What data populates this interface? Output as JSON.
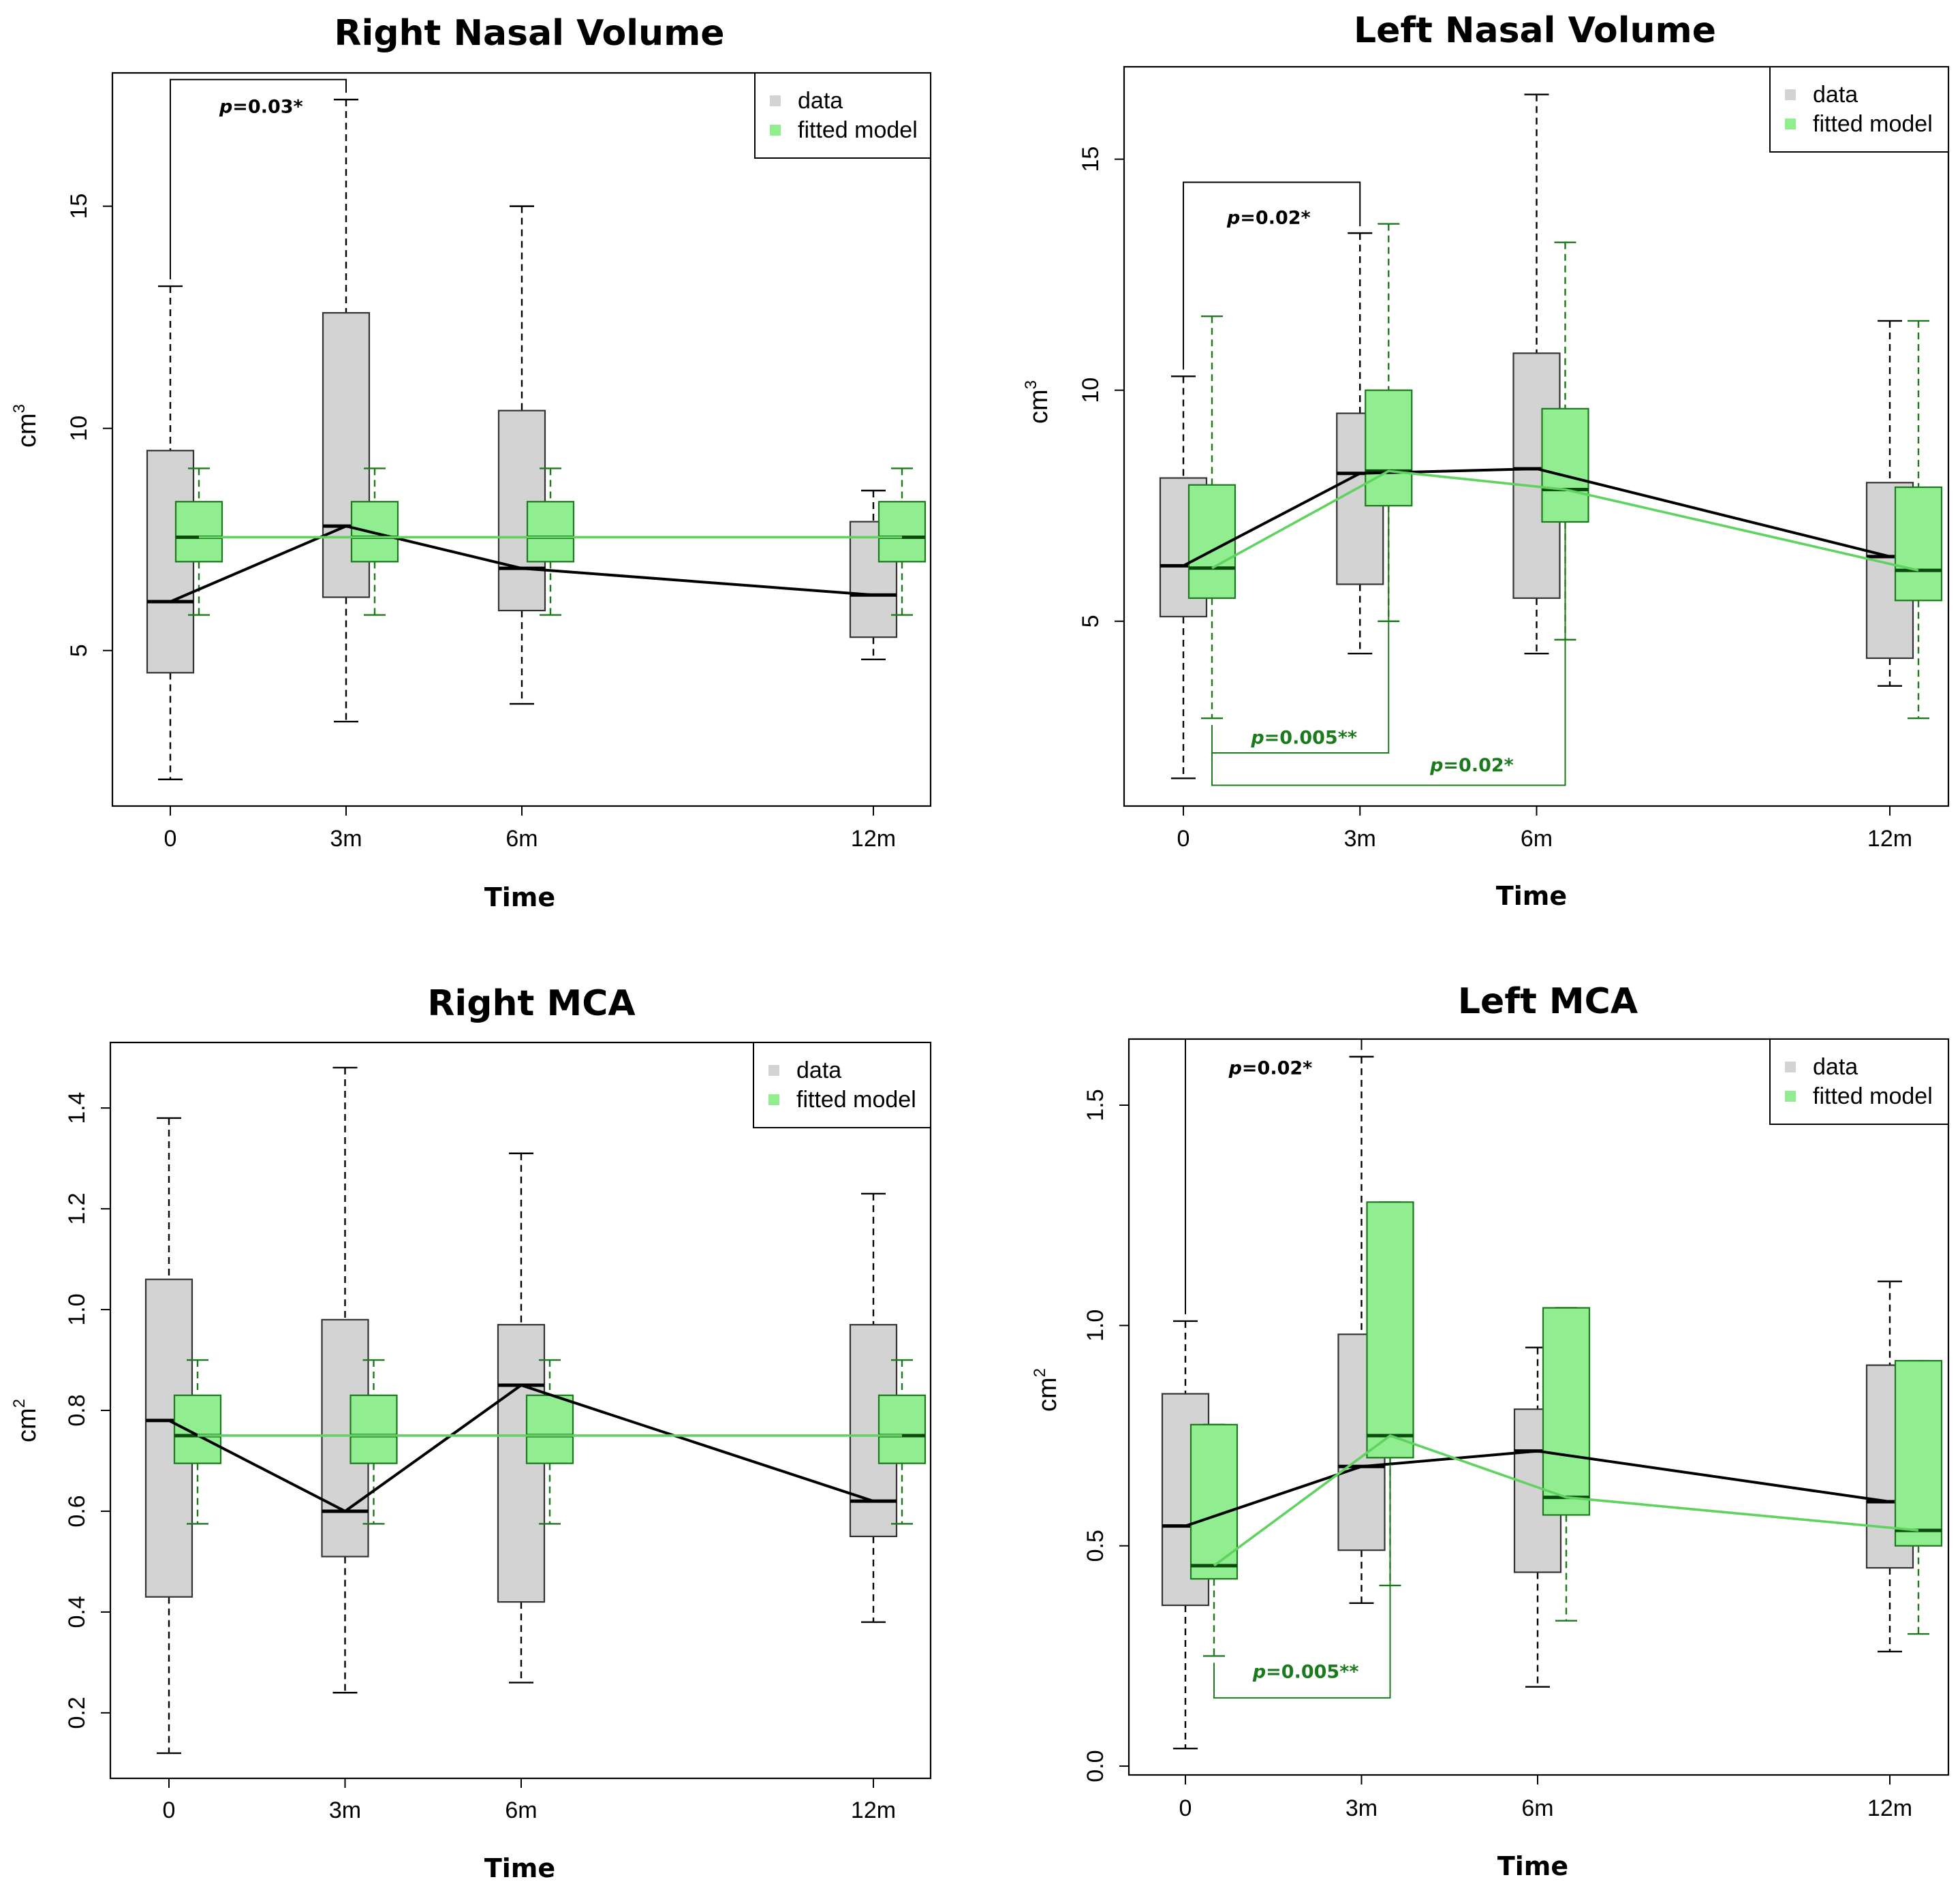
{
  "colors": {
    "data_box": "#d3d3d3",
    "model_box": "#90ee90",
    "model_line": "#5fd35f",
    "model_dark": "#1b7a1b",
    "ink": "#000000"
  },
  "chart_data": [
    {
      "type": "box",
      "title": "Right Nasal Volume",
      "xlabel": "Time",
      "ylabel": "cm",
      "ylabel_sup": "3",
      "ylim": [
        1.5,
        18
      ],
      "yticks": [
        5,
        10,
        15
      ],
      "ytick_labels": [
        "5",
        "10",
        "15"
      ],
      "categories": [
        "0",
        "3m",
        "6m",
        "12m"
      ],
      "x_positions": [
        0,
        3,
        6,
        12
      ],
      "legend": [
        "data",
        "fitted model"
      ],
      "series": [
        {
          "name": "data",
          "boxes": [
            {
              "min": 2.1,
              "q1": 4.5,
              "median": 6.1,
              "q3": 9.5,
              "max": 13.2
            },
            {
              "min": 3.4,
              "q1": 6.2,
              "median": 7.8,
              "q3": 12.6,
              "max": 17.4
            },
            {
              "min": 3.8,
              "q1": 5.9,
              "median": 6.85,
              "q3": 10.4,
              "max": 15.0
            },
            {
              "min": 4.8,
              "q1": 5.3,
              "median": 6.25,
              "q3": 7.9,
              "max": 8.6
            }
          ],
          "line": [
            6.1,
            7.8,
            6.85,
            6.25
          ]
        },
        {
          "name": "fitted model",
          "boxes": [
            {
              "min": 5.8,
              "q1": 7.0,
              "median": 7.55,
              "q3": 8.35,
              "max": 9.1
            },
            {
              "min": 5.8,
              "q1": 7.0,
              "median": 7.55,
              "q3": 8.35,
              "max": 9.1
            },
            {
              "min": 5.8,
              "q1": 7.0,
              "median": 7.55,
              "q3": 8.35,
              "max": 9.1
            },
            {
              "min": 5.8,
              "q1": 7.0,
              "median": 7.55,
              "q3": 8.35,
              "max": 9.1
            }
          ],
          "line": [
            7.55,
            7.55,
            7.55,
            7.55
          ]
        }
      ],
      "annotations": [
        {
          "text": "p=0.03*",
          "p": "p",
          "rest": "=0.03*",
          "color": "black",
          "from": 0,
          "to": 3,
          "side": "top",
          "level": 17.85,
          "text_y": 17.1,
          "text_x": 1.55
        }
      ]
    },
    {
      "type": "box",
      "title": "Left Nasal Volume",
      "xlabel": "Time",
      "ylabel": "cm",
      "ylabel_sup": "3",
      "ylim": [
        1.0,
        17.0
      ],
      "yticks": [
        5,
        10,
        15
      ],
      "ytick_labels": [
        "5",
        "10",
        "15"
      ],
      "categories": [
        "0",
        "3m",
        "6m",
        "12m"
      ],
      "x_positions": [
        0,
        3,
        6,
        12
      ],
      "legend": [
        "data",
        "fitted model"
      ],
      "series": [
        {
          "name": "data",
          "boxes": [
            {
              "min": 1.6,
              "q1": 5.1,
              "median": 6.2,
              "q3": 8.1,
              "max": 10.3
            },
            {
              "min": 4.3,
              "q1": 5.8,
              "median": 8.2,
              "q3": 9.5,
              "max": 13.4
            },
            {
              "min": 4.3,
              "q1": 5.5,
              "median": 8.3,
              "q3": 10.8,
              "max": 16.4
            },
            {
              "min": 3.6,
              "q1": 4.2,
              "median": 6.4,
              "q3": 8.0,
              "max": 11.5
            }
          ],
          "line": [
            6.2,
            8.2,
            8.3,
            6.4
          ]
        },
        {
          "name": "fitted model",
          "boxes": [
            {
              "min": 2.9,
              "q1": 5.5,
              "median": 6.15,
              "q3": 7.95,
              "max": 11.6
            },
            {
              "min": 5.0,
              "q1": 7.5,
              "median": 8.25,
              "q3": 10.0,
              "max": 13.6
            },
            {
              "min": 4.6,
              "q1": 7.15,
              "median": 7.85,
              "q3": 9.6,
              "max": 13.2
            },
            {
              "min": 2.9,
              "q1": 5.45,
              "median": 6.1,
              "q3": 7.9,
              "max": 11.5
            }
          ],
          "line": [
            6.15,
            8.25,
            7.85,
            6.1
          ]
        }
      ],
      "annotations": [
        {
          "text": "p=0.02*",
          "p": "p",
          "rest": "=0.02*",
          "color": "black",
          "from": 0,
          "to": 3,
          "side": "top",
          "level": 14.5,
          "text_y": 13.6,
          "text_x": 1.45
        },
        {
          "text": "p=0.005**",
          "p": "p",
          "rest": "=0.005**",
          "color": "green",
          "from": 0,
          "to": 3,
          "side": "bottom",
          "level": 2.15,
          "text_y": 2.35,
          "text_x": 2.05
        },
        {
          "text": "p=0.02*",
          "p": "p",
          "rest": "=0.02*",
          "color": "green",
          "from": 0,
          "to": 6,
          "side": "bottom",
          "level": 1.45,
          "text_y": 1.75,
          "text_x": 4.9
        }
      ]
    },
    {
      "type": "box",
      "title": "Right MCA",
      "xlabel": "Time",
      "ylabel": "cm",
      "ylabel_sup": "2",
      "ylim": [
        0.07,
        1.53
      ],
      "yticks": [
        0.2,
        0.4,
        0.6,
        0.8,
        1.0,
        1.2,
        1.4
      ],
      "ytick_labels": [
        "0.2",
        "0.4",
        "0.6",
        "0.8",
        "1.0",
        "1.2",
        "1.4"
      ],
      "categories": [
        "0",
        "3m",
        "6m",
        "12m"
      ],
      "x_positions": [
        0,
        3,
        6,
        12
      ],
      "legend": [
        "data",
        "fitted model"
      ],
      "series": [
        {
          "name": "data",
          "boxes": [
            {
              "min": 0.12,
              "q1": 0.43,
              "median": 0.78,
              "q3": 1.06,
              "max": 1.38
            },
            {
              "min": 0.24,
              "q1": 0.51,
              "median": 0.6,
              "q3": 0.98,
              "max": 1.48
            },
            {
              "min": 0.26,
              "q1": 0.42,
              "median": 0.85,
              "q3": 0.97,
              "max": 1.31
            },
            {
              "min": 0.38,
              "q1": 0.55,
              "median": 0.62,
              "q3": 0.97,
              "max": 1.23
            }
          ],
          "line": [
            0.78,
            0.6,
            0.85,
            0.62
          ]
        },
        {
          "name": "fitted model",
          "boxes": [
            {
              "min": 0.575,
              "q1": 0.695,
              "median": 0.75,
              "q3": 0.83,
              "max": 0.9
            },
            {
              "min": 0.575,
              "q1": 0.695,
              "median": 0.75,
              "q3": 0.83,
              "max": 0.9
            },
            {
              "min": 0.575,
              "q1": 0.695,
              "median": 0.75,
              "q3": 0.83,
              "max": 0.9
            },
            {
              "min": 0.575,
              "q1": 0.695,
              "median": 0.75,
              "q3": 0.83,
              "max": 0.9
            }
          ],
          "line": [
            0.75,
            0.75,
            0.75,
            0.75
          ]
        }
      ],
      "annotations": []
    },
    {
      "type": "box",
      "title": "Left MCA",
      "xlabel": "Time",
      "ylabel": "cm",
      "ylabel_sup": "2",
      "ylim": [
        -0.02,
        1.65
      ],
      "yticks": [
        0.0,
        0.5,
        1.0,
        1.5
      ],
      "ytick_labels": [
        "0.0",
        "0.5",
        "1.0",
        "1.5"
      ],
      "categories": [
        "0",
        "3m",
        "6m",
        "12m"
      ],
      "x_positions": [
        0,
        3,
        6,
        12
      ],
      "legend": [
        "data",
        "fitted model"
      ],
      "series": [
        {
          "name": "data",
          "boxes": [
            {
              "min": 0.04,
              "q1": 0.365,
              "median": 0.545,
              "q3": 0.845,
              "max": 1.01
            },
            {
              "min": 0.37,
              "q1": 0.49,
              "median": 0.68,
              "q3": 0.98,
              "max": 1.61
            },
            {
              "min": 0.18,
              "q1": 0.44,
              "median": 0.715,
              "q3": 0.81,
              "max": 0.95
            },
            {
              "min": 0.26,
              "q1": 0.45,
              "median": 0.6,
              "q3": 0.91,
              "max": 1.1
            }
          ],
          "line": [
            0.545,
            0.68,
            0.715,
            0.6
          ]
        },
        {
          "name": "fitted model",
          "boxes": [
            {
              "min": 0.25,
              "q1": 0.425,
              "median": 0.455,
              "q3": 0.775,
              "max": 0.775
            },
            {
              "min": 0.41,
              "q1": 0.7,
              "median": 0.75,
              "q3": 1.28,
              "max": 1.28
            },
            {
              "min": 0.33,
              "q1": 0.57,
              "median": 0.61,
              "q3": 1.04,
              "max": 1.04
            },
            {
              "min": 0.3,
              "q1": 0.5,
              "median": 0.535,
              "q3": 0.92,
              "max": 0.92
            }
          ],
          "line": [
            0.455,
            0.75,
            0.61,
            0.535
          ]
        }
      ],
      "annotations": [
        {
          "text": "p=0.02*",
          "p": "p",
          "rest": "=0.02*",
          "color": "black",
          "from": 0,
          "to": 3,
          "side": "top",
          "level": 1.65,
          "text_y": 1.57,
          "text_x": 1.45
        },
        {
          "text": "p=0.005**",
          "p": "p",
          "rest": "=0.005**",
          "color": "green",
          "from": 0,
          "to": 3,
          "side": "bottom",
          "level": 0.155,
          "text_y": 0.2,
          "text_x": 2.05
        }
      ]
    }
  ]
}
